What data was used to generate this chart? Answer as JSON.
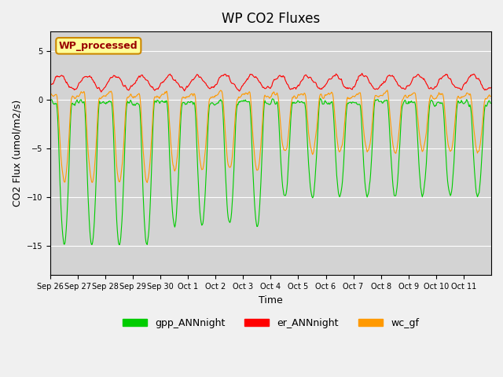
{
  "title": "WP CO2 Fluxes",
  "xlabel": "Time",
  "ylabel_plain": "CO2 Flux (umol/m2/s)",
  "ylim": [
    -18,
    7
  ],
  "plot_bg_color": "#d3d3d3",
  "fig_bg_color": "#f0f0f0",
  "annotation_text": "WP_processed",
  "annotation_bg": "#ffff99",
  "annotation_fg": "#990000",
  "annotation_edge": "#cc8800",
  "legend": [
    "gpp_ANNnight",
    "er_ANNnight",
    "wc_gf"
  ],
  "colors": [
    "#00cc00",
    "#ff0000",
    "#ff9900"
  ],
  "xtick_labels": [
    "Sep 26",
    "Sep 27",
    "Sep 28",
    "Sep 29",
    "Sep 30",
    "Oct 1",
    "Oct 2",
    "Oct 3",
    "Oct 4",
    "Oct 5",
    "Oct 6",
    "Oct 7",
    "Oct 8",
    "Oct 9",
    "Oct 10",
    "Oct 11"
  ],
  "n_days": 16,
  "pts_per_day": 48,
  "seed": 42
}
